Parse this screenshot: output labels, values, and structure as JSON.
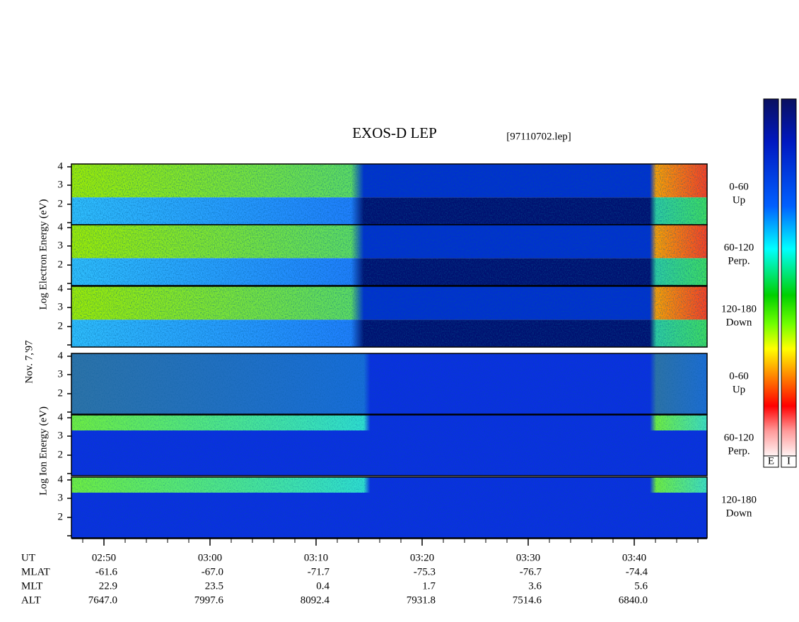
{
  "header": {
    "title": "EXOS-D LEP",
    "file": "[97110702.lep]"
  },
  "side_labels": {
    "electron": "Log  Electron Energy (eV)",
    "date": "Nov. 7,'97",
    "ion": "Log  Ion Energy (eV)"
  },
  "panels": [
    {
      "label": "0-60",
      "sublabel": "Up",
      "ticks": [
        "4",
        "3",
        "2"
      ]
    },
    {
      "label": "60-120",
      "sublabel": "Perp.",
      "ticks": [
        "4",
        "3",
        "2"
      ]
    },
    {
      "label": "120-180",
      "sublabel": "Down",
      "ticks": [
        "4",
        "3",
        "2"
      ]
    },
    {
      "label": "0-60",
      "sublabel": "Up",
      "ticks": [
        "4",
        "3",
        "2"
      ]
    },
    {
      "label": "60-120",
      "sublabel": "Perp.",
      "ticks": [
        "4",
        "3",
        "2"
      ]
    },
    {
      "label": "120-180",
      "sublabel": "Down",
      "ticks": [
        "4",
        "3",
        "2"
      ]
    }
  ],
  "colorbars": [
    "E",
    "I"
  ],
  "x_axis": {
    "rows": [
      {
        "name": "UT",
        "values": [
          "02:50",
          "03:00",
          "03:10",
          "03:20",
          "03:30",
          "03:40"
        ]
      },
      {
        "name": "MLAT",
        "values": [
          "-61.6",
          "-67.0",
          "-71.7",
          "-75.3",
          "-76.7",
          "-74.4"
        ]
      },
      {
        "name": "MLT",
        "values": [
          "22.9",
          "23.5",
          "0.4",
          "1.7",
          "3.6",
          "5.6"
        ]
      },
      {
        "name": "ALT",
        "values": [
          "7647.0",
          "7997.6",
          "8092.4",
          "7931.8",
          "7514.6",
          "6840.0"
        ]
      }
    ]
  }
}
